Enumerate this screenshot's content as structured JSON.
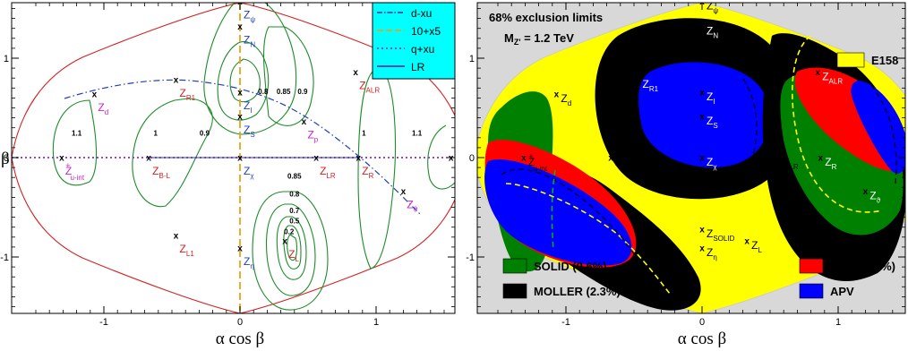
{
  "chart_data": [
    {
      "type": "scatter",
      "xlabel": "α cos β",
      "ylabel": "β",
      "xlim": [
        -1.65,
        1.65
      ],
      "ylim": [
        -1.6,
        1.6
      ],
      "xticks": [
        {
          "v": -1,
          "label": "-1"
        },
        {
          "v": 0,
          "label": "0"
        },
        {
          "v": 1,
          "label": "1"
        }
      ],
      "yticks": [
        {
          "v": 1,
          "label": "1"
        },
        {
          "v": 0,
          "label": "0"
        },
        {
          "v": -1,
          "label": "-1"
        }
      ],
      "legend": {
        "position": "top-right",
        "entries": [
          {
            "label": "d-xu",
            "style": "dash-dot",
            "color": "#1f3fbf"
          },
          {
            "label": "10+x5",
            "style": "dashed",
            "color": "#e8a317"
          },
          {
            "label": "q+xu",
            "style": "dotted",
            "color": "#8a2be2"
          },
          {
            "label": "LR",
            "style": "solid",
            "color": "#3030c0"
          }
        ]
      },
      "models": [
        {
          "id": "psi",
          "base": "Z",
          "sub": "ψ",
          "sup": "",
          "x": 0.0,
          "y": 1.5708,
          "color": "#1f3fbf"
        },
        {
          "id": "N",
          "base": "Z",
          "sub": "N",
          "sup": "",
          "x": 0.0,
          "y": 1.318,
          "color": "#1f3fbf"
        },
        {
          "id": "I",
          "base": "Z",
          "sub": "I",
          "sup": "",
          "x": 0.0,
          "y": 0.659,
          "color": "#1f3fbf"
        },
        {
          "id": "S",
          "base": "Z",
          "sub": "S",
          "sup": "",
          "x": 0.0,
          "y": 0.413,
          "color": "#1f3fbf"
        },
        {
          "id": "chi",
          "base": "Z",
          "sub": "χ",
          "sup": "",
          "x": 0.0,
          "y": 0.0,
          "color": "#1f3fbf"
        },
        {
          "id": "eta",
          "base": "Z",
          "sub": "η",
          "sup": "",
          "x": 0.0,
          "y": -0.912,
          "color": "#1f3fbf"
        },
        {
          "id": "R1",
          "base": "Z",
          "sub": "R1",
          "sup": "",
          "x": -0.47,
          "y": 0.785,
          "color": "#d42020"
        },
        {
          "id": "d",
          "base": "Z",
          "sub": "d",
          "sup": "",
          "x": -1.07,
          "y": 0.64,
          "color": "#cc22cc"
        },
        {
          "id": "uint",
          "base": "Z",
          "sub": "u-int",
          "sup": "+",
          "x": -1.31,
          "y": 0.0,
          "color": "#cc22cc"
        },
        {
          "id": "BL",
          "base": "Z",
          "sub": "B-L",
          "sup": "",
          "x": -0.67,
          "y": 0.0,
          "color": "#d42020"
        },
        {
          "id": "L1",
          "base": "Z",
          "sub": "L1",
          "sup": "",
          "x": -0.47,
          "y": -0.785,
          "color": "#d42020"
        },
        {
          "id": "ALR",
          "base": "Z",
          "sub": "ALR",
          "sup": "",
          "x": 0.85,
          "y": 0.86,
          "color": "#d42020"
        },
        {
          "id": "p",
          "base": "Z",
          "sub": "p",
          "sup": "",
          "x": 0.47,
          "y": 0.363,
          "color": "#cc22cc"
        },
        {
          "id": "LR",
          "base": "Z",
          "sub": "LR",
          "sup": "",
          "x": 0.56,
          "y": 0.0,
          "color": "#d42020"
        },
        {
          "id": "R",
          "base": "Z",
          "sub": "R",
          "sup": "",
          "x": 0.87,
          "y": 0.0,
          "color": "#d42020"
        },
        {
          "id": "Y",
          "base": "Z",
          "sub": "Y",
          "sup": "",
          "x": 1.55,
          "y": 0.0,
          "color": "#d42020"
        },
        {
          "id": "theta",
          "base": "Z",
          "sub": "ϑ",
          "sup": "",
          "x": 1.2,
          "y": -0.34,
          "color": "#cc22cc"
        },
        {
          "id": "L",
          "base": "Z",
          "sub": "L",
          "sup": "",
          "x": 0.33,
          "y": -0.84,
          "color": "#d42020"
        }
      ],
      "contour_labels": [
        {
          "text": "1.1",
          "x": -1.2,
          "y": 0.22
        },
        {
          "text": "1",
          "x": -0.62,
          "y": 0.22
        },
        {
          "text": "0.9",
          "x": -0.26,
          "y": 0.22
        },
        {
          "text": "0.8",
          "x": 0.17,
          "y": 0.64
        },
        {
          "text": "0.85",
          "x": 0.32,
          "y": 0.64
        },
        {
          "text": "0.9",
          "x": 0.46,
          "y": 0.64
        },
        {
          "text": "0.85",
          "x": 0.4,
          "y": -0.21
        },
        {
          "text": "0.8",
          "x": 0.4,
          "y": -0.39
        },
        {
          "text": "0.7",
          "x": 0.4,
          "y": -0.56
        },
        {
          "text": "0.5",
          "x": 0.4,
          "y": -0.66
        },
        {
          "text": "0.2",
          "x": 0.36,
          "y": -0.77
        },
        {
          "text": "1",
          "x": 0.91,
          "y": 0.22
        },
        {
          "text": "1.1",
          "x": 1.3,
          "y": 0.22
        }
      ]
    },
    {
      "type": "scatter",
      "xlabel": "α cos β",
      "ylabel": "",
      "xlim": [
        -1.65,
        1.65
      ],
      "ylim": [
        -1.6,
        1.6
      ],
      "xticks": [
        {
          "v": -1,
          "label": "-1"
        },
        {
          "v": 0,
          "label": "0"
        },
        {
          "v": 1,
          "label": "1"
        }
      ],
      "yticks": [
        {
          "v": 1,
          "label": "1"
        },
        {
          "v": 0,
          "label": "0"
        },
        {
          "v": -1,
          "label": "-1"
        }
      ],
      "title_line1": "68% exclusion limits",
      "title_line2_base": "M",
      "title_line2_sub": "Z'",
      "title_line2_rest": " = 1.2 TeV",
      "legend": {
        "entries": [
          {
            "label": "E158",
            "color": "#ffff00",
            "position": "top-right"
          },
          {
            "label": "SOLID (0.6%)",
            "color": "#008000",
            "position": "bottom-left"
          },
          {
            "label": "MOLLER (2.3%)",
            "color": "#000000",
            "position": "bottom-left"
          },
          {
            "label": "Qweak (4%)",
            "color": "#ff0000",
            "position": "bottom-right"
          },
          {
            "label": "APV",
            "color": "#0000ff",
            "position": "bottom-right"
          }
        ]
      },
      "models": [
        {
          "id": "psi",
          "sub": "ψ",
          "sup": "",
          "x": 0.0,
          "y": 1.5708
        },
        {
          "id": "N",
          "sub": "N",
          "sup": "",
          "x": 0.0,
          "y": 1.318
        },
        {
          "id": "I",
          "sub": "I",
          "sup": "",
          "x": 0.0,
          "y": 0.659
        },
        {
          "id": "S",
          "sub": "S",
          "sup": "",
          "x": 0.0,
          "y": 0.413
        },
        {
          "id": "chi",
          "sub": "χ",
          "sup": "",
          "x": 0.0,
          "y": 0.0
        },
        {
          "id": "eta",
          "sub": "η",
          "sup": "",
          "x": 0.0,
          "y": -0.912
        },
        {
          "id": "SOLID",
          "sub": "SOLID",
          "sup": "",
          "x": 0.0,
          "y": -0.72
        },
        {
          "id": "R1",
          "sub": "R1",
          "sup": "",
          "x": -0.47,
          "y": 0.785
        },
        {
          "id": "d",
          "sub": "d",
          "sup": "",
          "x": -1.07,
          "y": 0.64
        },
        {
          "id": "uint",
          "sub": "u-int",
          "sup": "+",
          "x": -1.31,
          "y": 0.0
        },
        {
          "id": "BL",
          "sub": "B-L",
          "sup": "",
          "x": -0.67,
          "y": 0.0
        },
        {
          "id": "L1",
          "sub": "L1",
          "sup": "",
          "x": -0.47,
          "y": -0.785
        },
        {
          "id": "ALR",
          "sub": "ALR",
          "sup": "",
          "x": 0.85,
          "y": 0.86
        },
        {
          "id": "p",
          "sub": "p",
          "sup": "",
          "x": 0.47,
          "y": 0.363
        },
        {
          "id": "LR",
          "sub": "LR",
          "sup": "",
          "x": 0.56,
          "y": 0.0
        },
        {
          "id": "R",
          "sub": "R",
          "sup": "",
          "x": 0.87,
          "y": 0.0
        },
        {
          "id": "Y",
          "sub": "Y",
          "sup": "",
          "x": 1.55,
          "y": 0.0
        },
        {
          "id": "theta",
          "sub": "ϑ",
          "sup": "",
          "x": 1.2,
          "y": -0.34
        },
        {
          "id": "L",
          "sub": "L",
          "sup": "",
          "x": 0.33,
          "y": -0.84
        }
      ]
    }
  ]
}
